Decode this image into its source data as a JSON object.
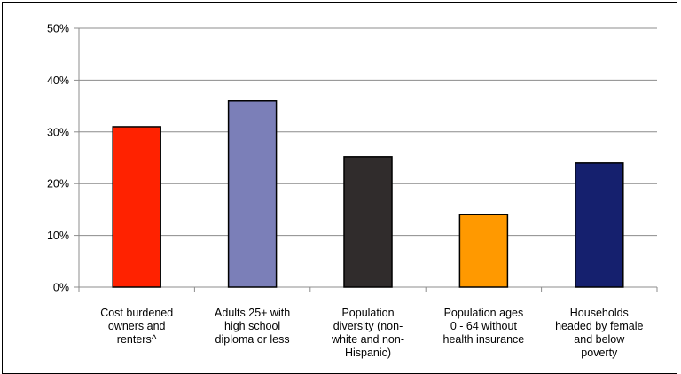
{
  "chart_data": {
    "type": "bar",
    "title": "",
    "xlabel": "",
    "ylabel": "",
    "ylim": [
      0,
      50
    ],
    "yticks": [
      "0%",
      "10%",
      "20%",
      "30%",
      "40%",
      "50%"
    ],
    "grid": true,
    "legend": "none",
    "categories": [
      [
        "Cost burdened",
        "owners and",
        "renters^"
      ],
      [
        "Adults 25+ with",
        "high school",
        "diploma or less"
      ],
      [
        "Population",
        "diversity (non-",
        "white and non-",
        "Hispanic)"
      ],
      [
        "Population ages",
        "0 - 64 without",
        "health insurance"
      ],
      [
        "Households",
        "headed by female",
        "and below",
        "poverty"
      ]
    ],
    "values": [
      31,
      36,
      25.2,
      14,
      24
    ],
    "colors": [
      "#ff2200",
      "#7b7fb8",
      "#302c2c",
      "#ff9900",
      "#15206e"
    ]
  }
}
